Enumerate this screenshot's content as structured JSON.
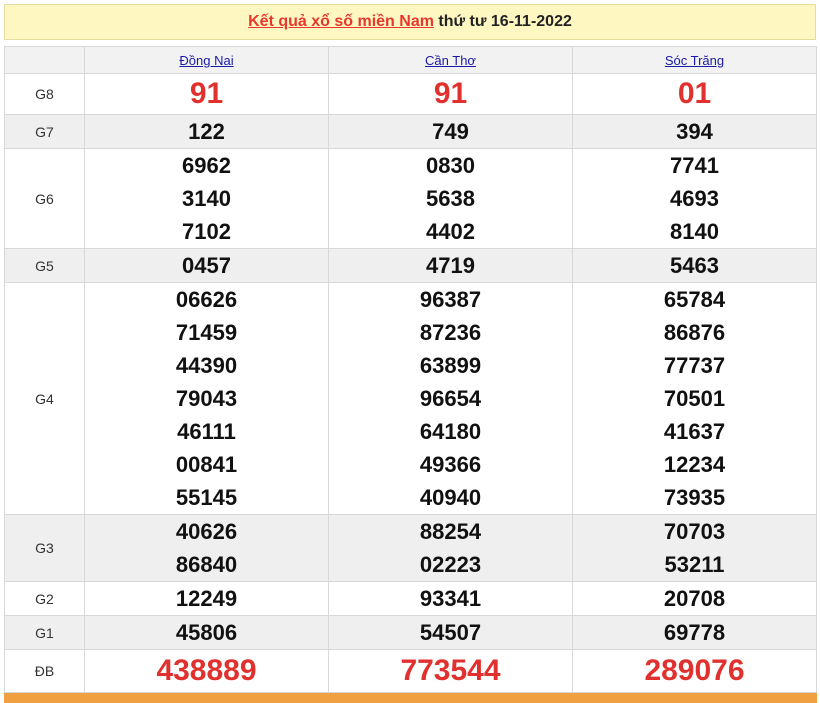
{
  "header": {
    "title": "Kết quả xổ số miền Nam",
    "date": "thứ tư 16-11-2022"
  },
  "table": {
    "columns": [
      "Đồng Nai",
      "Cần Thơ",
      "Sóc Trăng"
    ],
    "rows": [
      {
        "label": "G8",
        "cells": [
          [
            "91"
          ],
          [
            "91"
          ],
          [
            "01"
          ]
        ]
      },
      {
        "label": "G7",
        "cells": [
          [
            "122"
          ],
          [
            "749"
          ],
          [
            "394"
          ]
        ]
      },
      {
        "label": "G6",
        "cells": [
          [
            "6962",
            "3140",
            "7102"
          ],
          [
            "0830",
            "5638",
            "4402"
          ],
          [
            "7741",
            "4693",
            "8140"
          ]
        ]
      },
      {
        "label": "G5",
        "cells": [
          [
            "0457"
          ],
          [
            "4719"
          ],
          [
            "5463"
          ]
        ]
      },
      {
        "label": "G4",
        "cells": [
          [
            "06626",
            "71459",
            "44390",
            "79043",
            "46111",
            "00841",
            "55145"
          ],
          [
            "96387",
            "87236",
            "63899",
            "96654",
            "64180",
            "49366",
            "40940"
          ],
          [
            "65784",
            "86876",
            "77737",
            "70501",
            "41637",
            "12234",
            "73935"
          ]
        ]
      },
      {
        "label": "G3",
        "cells": [
          [
            "40626",
            "86840"
          ],
          [
            "88254",
            "02223"
          ],
          [
            "70703",
            "53211"
          ]
        ]
      },
      {
        "label": "G2",
        "cells": [
          [
            "12249"
          ],
          [
            "93341"
          ],
          [
            "20708"
          ]
        ]
      },
      {
        "label": "G1",
        "cells": [
          [
            "45806"
          ],
          [
            "54507"
          ],
          [
            "69778"
          ]
        ]
      },
      {
        "label": "ĐB",
        "cells": [
          [
            "438889"
          ],
          [
            "773544"
          ],
          [
            "289076"
          ]
        ]
      }
    ]
  }
}
